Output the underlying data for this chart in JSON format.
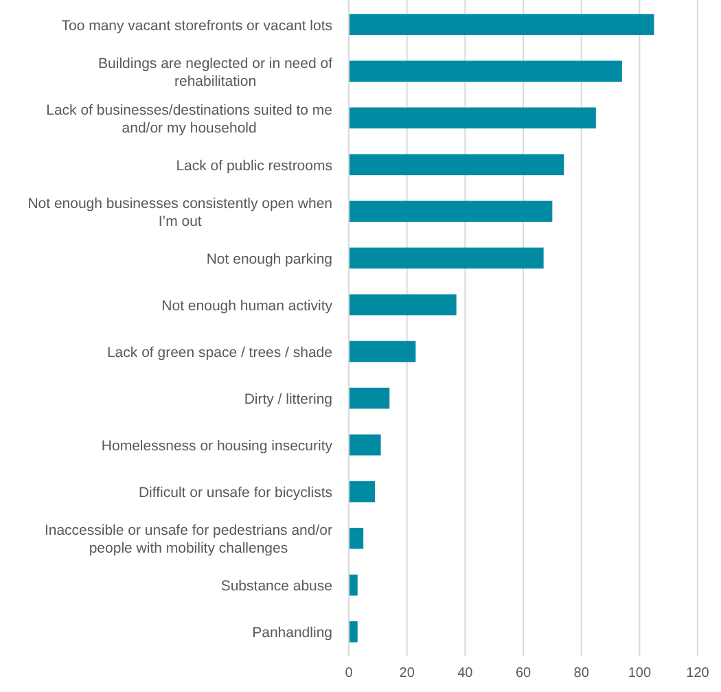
{
  "chart_data": {
    "type": "bar",
    "orientation": "horizontal",
    "categories": [
      "Too many vacant storefronts or vacant lots",
      "Buildings are neglected or in need of rehabilitation",
      "Lack of businesses/destinations suited to me and/or my household",
      "Lack of public restrooms",
      "Not enough businesses consistently open when I’m out",
      "Not enough parking",
      "Not enough human activity",
      "Lack of green space / trees / shade",
      "Dirty / littering",
      "Homelessness or housing insecurity",
      "Difficult or unsafe for bicyclists",
      "Inaccessible or unsafe for pedestrians and/or people with mobility challenges",
      "Substance abuse",
      "Panhandling"
    ],
    "values": [
      105,
      94,
      85,
      74,
      70,
      67,
      37,
      23,
      14,
      11,
      9,
      5,
      3,
      3
    ],
    "color": "#008ba3",
    "xlim": [
      0,
      120
    ],
    "xticks": [
      0,
      20,
      40,
      60,
      80,
      100,
      120
    ],
    "grid": "x"
  }
}
